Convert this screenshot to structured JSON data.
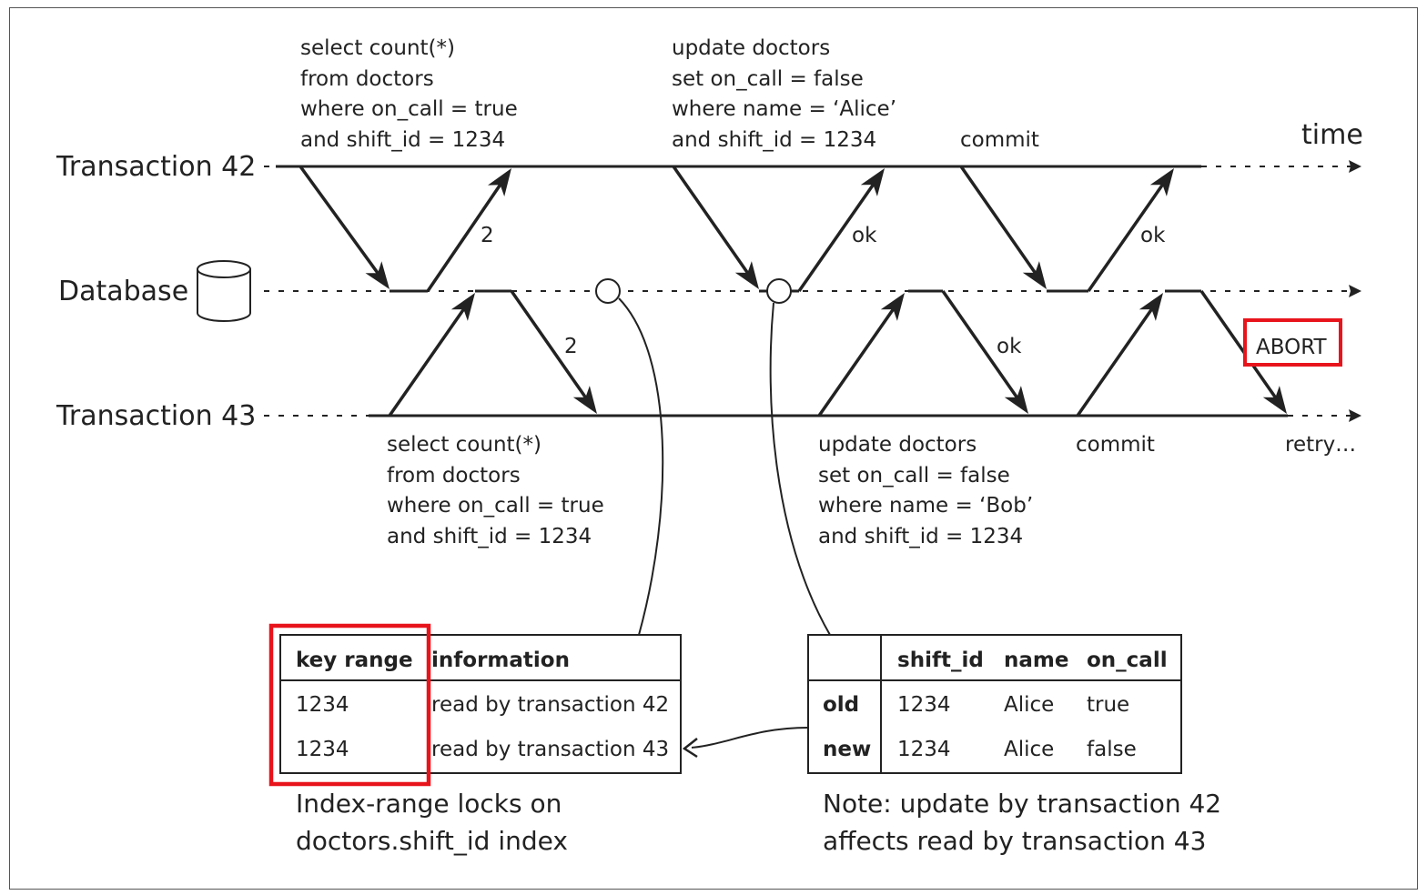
{
  "rows": {
    "tx42_label": "Transaction 42",
    "database_label": "Database",
    "tx43_label": "Transaction 43"
  },
  "time_label": "time",
  "tx42": {
    "query_select": [
      "select count(*)",
      "from doctors",
      "where on_call = true",
      "and shift_id = 1234"
    ],
    "query_update": [
      "update doctors",
      "set on_call = false",
      "where name = ‘Alice’",
      "and shift_id = 1234"
    ],
    "commit_label": "commit",
    "reply_select": "2",
    "reply_update": "ok",
    "reply_commit": "ok"
  },
  "tx43": {
    "query_select": [
      "select count(*)",
      "from doctors",
      "where on_call = true",
      "and shift_id = 1234"
    ],
    "query_update": [
      "update doctors",
      "set on_call = false",
      "where name = ‘Bob’",
      "and shift_id = 1234"
    ],
    "commit_label": "commit",
    "retry_label": "retry…",
    "reply_select": "2",
    "reply_update": "ok",
    "abort_label": "ABORT"
  },
  "lock_table": {
    "headers": [
      "key range",
      "information"
    ],
    "rows": [
      [
        "1234",
        "read by transaction 42"
      ],
      [
        "1234",
        "read by transaction 43"
      ]
    ],
    "caption": [
      "Index-range locks on",
      "doctors.shift_id index"
    ]
  },
  "update_table": {
    "headers": [
      "",
      "shift_id",
      "name",
      "on_call"
    ],
    "rows": [
      [
        "old",
        "1234",
        "Alice",
        "true"
      ],
      [
        "new",
        "1234",
        "Alice",
        "false"
      ]
    ],
    "caption": [
      "Note: update by transaction 42",
      "affects read by transaction 43"
    ]
  },
  "colors": {
    "ink": "#222222",
    "highlight": "#e8141c"
  }
}
